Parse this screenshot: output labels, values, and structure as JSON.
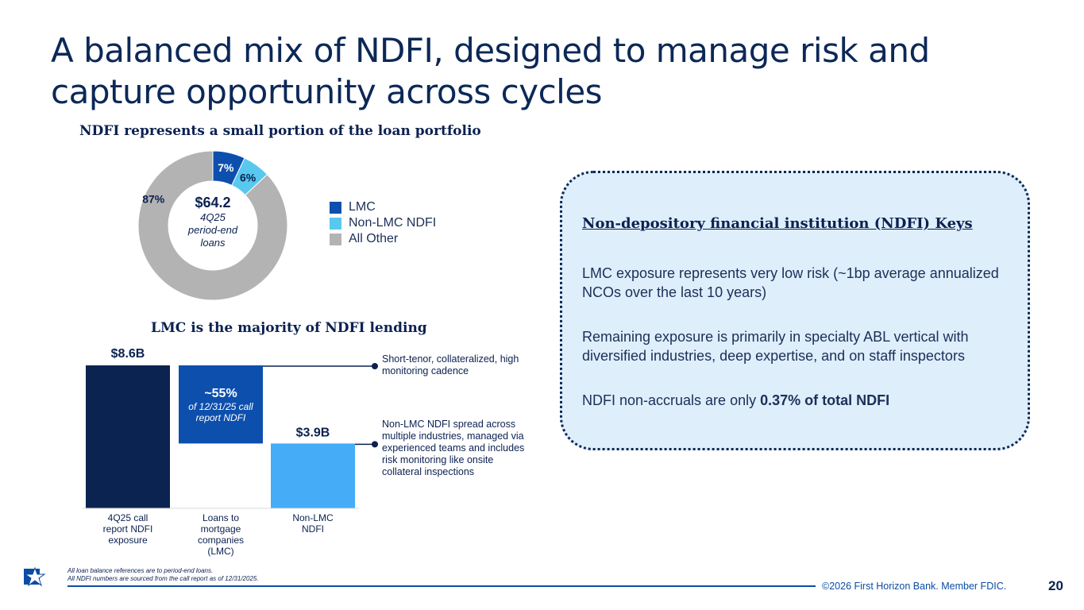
{
  "title": "A balanced mix of NDFI, designed to manage risk and capture opportunity across cycles",
  "donut": {
    "subtitle": "NDFI represents a small portion of the loan portfolio",
    "center_value": "$64.2",
    "center_label": [
      "4Q25",
      "period-end",
      "loans"
    ],
    "legend": [
      "LMC",
      "Non-LMC NDFI",
      "All Other"
    ]
  },
  "bar": {
    "subtitle": "LMC is the majority of NDFI lending",
    "lmc_pct": "~55%",
    "lmc_pct_label": [
      "of 12/31/25 call",
      "report NDFI"
    ]
  },
  "notes": {
    "top": "Short-tenor, collateralized, high monitoring cadence",
    "bottom": "Non-LMC NDFI spread across multiple industries, managed via experienced teams and includes risk monitoring like onsite collateral inspections"
  },
  "keys": {
    "heading": "Non-depository financial institution (NDFI) Keys",
    "p1": "LMC exposure represents very low risk (~1bp average annualized NCOs over the last 10 years)",
    "p2": "Remaining exposure is primarily in specialty ABL vertical with diversified industries, deep expertise, and on staff inspectors",
    "p3_prefix": "NDFI non-accruals are only ",
    "p3_bold": "0.37% of total NDFI"
  },
  "footnotes": [
    "All loan balance references are to period-end loans.",
    "All NDFI numbers are sourced from the call report as of 12/31/2025."
  ],
  "copyright": "©2026 First Horizon Bank. Member FDIC.",
  "page_number": "20",
  "colors": {
    "navy": "#0b2150",
    "lmc": "#0d4fad",
    "non_lmc": "#58c8ef",
    "other": "#b3b3b3",
    "bar_total": "#0b2350",
    "bar_lmc": "#0d4fad",
    "bar_nonlmc": "#45acf7"
  },
  "chart_data": [
    {
      "type": "pie",
      "title": "NDFI represents a small portion of the loan portfolio",
      "categories": [
        "LMC",
        "Non-LMC NDFI",
        "All Other"
      ],
      "values": [
        7,
        6,
        87
      ],
      "value_labels": [
        "7%",
        "6%",
        "87%"
      ],
      "unit": "%"
    },
    {
      "type": "bar",
      "subtype": "waterfall",
      "title": "LMC is the majority of NDFI lending",
      "categories": [
        "4Q25 call report NDFI exposure",
        "Loans to mortgage companies (LMC)",
        "Non-LMC NDFI"
      ],
      "values": [
        8.6,
        4.7,
        3.9
      ],
      "value_labels": [
        "$8.6B",
        "~55%",
        "$3.9B"
      ],
      "unit": "$B",
      "ylim": [
        0,
        8.6
      ]
    }
  ]
}
